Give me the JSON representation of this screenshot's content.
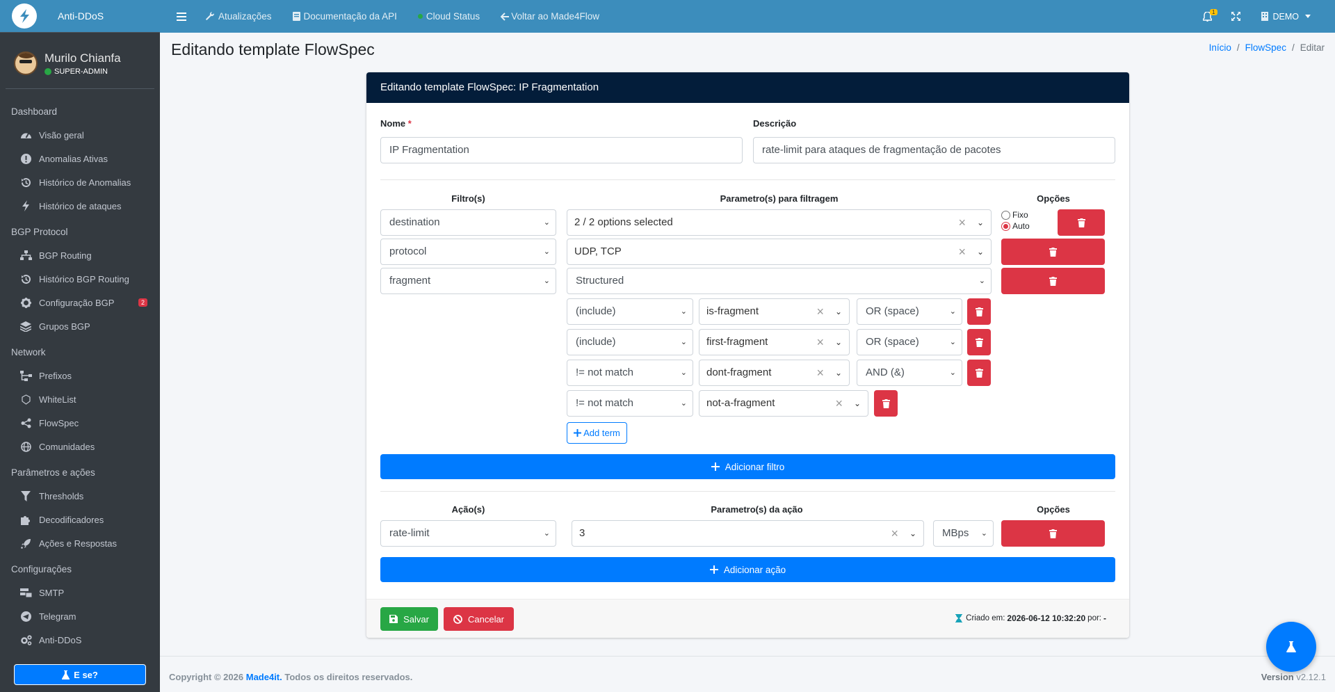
{
  "brand": {
    "name": "Anti-DDoS"
  },
  "user": {
    "name": "Murilo Chianfa",
    "role": "SUPER-ADMIN"
  },
  "sidebar": {
    "groups": [
      {
        "header": "Dashboard",
        "items": [
          {
            "label": "Visão geral",
            "icon": "tachometer-icon"
          },
          {
            "label": "Anomalias Ativas",
            "icon": "exclamation-circle-icon"
          },
          {
            "label": "Histórico de Anomalias",
            "icon": "history-icon"
          },
          {
            "label": "Histórico de ataques",
            "icon": "bolt-icon"
          }
        ]
      },
      {
        "header": "BGP Protocol",
        "items": [
          {
            "label": "BGP Routing",
            "icon": "sitemap-icon"
          },
          {
            "label": "Histórico BGP Routing",
            "icon": "history-icon"
          },
          {
            "label": "Configuração BGP",
            "icon": "gear-icon",
            "badge": "2"
          },
          {
            "label": "Grupos BGP",
            "icon": "layers-icon"
          }
        ]
      },
      {
        "header": "Network",
        "items": [
          {
            "label": "Prefixos",
            "icon": "network-icon"
          },
          {
            "label": "WhiteList",
            "icon": "shield-icon"
          },
          {
            "label": "FlowSpec",
            "icon": "share-icon"
          },
          {
            "label": "Comunidades",
            "icon": "globe-icon"
          }
        ]
      },
      {
        "header": "Parâmetros e ações",
        "items": [
          {
            "label": "Thresholds",
            "icon": "filter-icon"
          },
          {
            "label": "Decodificadores",
            "icon": "puzzle-icon"
          },
          {
            "label": "Ações e Respostas",
            "icon": "rocket-icon"
          }
        ]
      },
      {
        "header": "Configurações",
        "items": [
          {
            "label": "SMTP",
            "icon": "mail-server-icon"
          },
          {
            "label": "Telegram",
            "icon": "telegram-icon"
          },
          {
            "label": "Anti-DDoS",
            "icon": "gears-icon"
          }
        ]
      }
    ],
    "ese_button": "E se?"
  },
  "topnav": {
    "items": [
      "Atualizações",
      "Documentação da API",
      "Cloud Status",
      "Voltar ao Made4Flow"
    ],
    "bell_count": "1",
    "tenant": "DEMO"
  },
  "page": {
    "title": "Editando template FlowSpec",
    "breadcrumb": [
      "Início",
      "FlowSpec",
      "Editar"
    ]
  },
  "form": {
    "header": "Editando template FlowSpec: IP Fragmentation",
    "name_label": "Nome",
    "name_required": "*",
    "name_value": "IP Fragmentation",
    "desc_label": "Descrição",
    "desc_value": "rate-limit para ataques de fragmentação de pacotes",
    "filters_col": "Filtro(s)",
    "params_col": "Parametro(s) para filtragem",
    "options_col": "Opções",
    "filters": [
      {
        "filter": "destination",
        "param": "2 / 2 options selected"
      },
      {
        "filter": "protocol",
        "param": "UDP, TCP"
      },
      {
        "filter": "fragment",
        "param": "Structured"
      }
    ],
    "radio_fixo": "Fixo",
    "radio_auto": "Auto",
    "terms": [
      {
        "op": "(include)",
        "value": "is-fragment",
        "join": "OR (space)"
      },
      {
        "op": "(include)",
        "value": "first-fragment",
        "join": "OR (space)"
      },
      {
        "op": "!= not match",
        "value": "dont-fragment",
        "join": "AND (&)"
      },
      {
        "op": "!= not match",
        "value": "not-a-fragment"
      }
    ],
    "add_term": "Add term",
    "add_filter": "Adicionar filtro",
    "actions_col": "Ação(s)",
    "action_params_col": "Parametro(s) da ação",
    "action_options_col": "Opções",
    "action": {
      "type": "rate-limit",
      "value": "3",
      "unit": "MBps"
    },
    "add_action": "Adicionar ação",
    "save": "Salvar",
    "cancel": "Cancelar",
    "created_label": "Criado em:",
    "created_value": "2026-06-12 10:32:20",
    "by_label": "por:",
    "by_value": "-"
  },
  "footer": {
    "copyright_prefix": "Copyright © 2026",
    "company": "Made4it.",
    "rights": "Todos os direitos reservados.",
    "version_label": "Version",
    "version": "v2.12.1"
  },
  "colors": {
    "primary": "#007bff",
    "danger": "#dc3545",
    "success": "#28a745",
    "topbar": "#3c8dbc",
    "sidebar": "#343a40",
    "card_header": "#031d3a"
  }
}
